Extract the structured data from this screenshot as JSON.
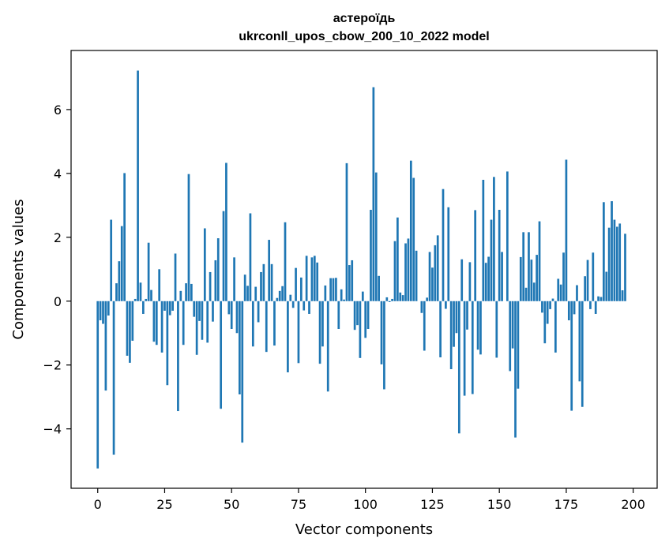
{
  "chart_data": {
    "type": "bar",
    "title": "астероїдь",
    "subtitle": "ukrconll_upos_cbow_200_10_2022 model",
    "xlabel": "Vector components",
    "ylabel": "Components values",
    "xlim": [
      -9.95,
      208.95
    ],
    "ylim": [
      -5.86,
      7.85
    ],
    "xticks": [
      0,
      25,
      50,
      75,
      100,
      125,
      150,
      175,
      200
    ],
    "yticks": [
      -4,
      -2,
      0,
      2,
      4,
      6
    ],
    "ytick_labels": [
      "−4",
      "−2",
      "0",
      "2",
      "4",
      "6"
    ],
    "grid": false,
    "bar_color": "#1f77b4",
    "values": [
      -5.24,
      -0.6,
      -0.71,
      -2.8,
      -0.45,
      2.55,
      -4.81,
      0.56,
      1.25,
      2.35,
      4.01,
      -1.71,
      -1.93,
      -1.24,
      0.07,
      7.22,
      0.58,
      -0.4,
      0.07,
      1.83,
      0.35,
      -1.27,
      -1.37,
      1.0,
      -1.61,
      -0.3,
      -2.63,
      -0.44,
      -0.3,
      1.49,
      -3.44,
      0.32,
      -1.37,
      0.56,
      3.98,
      0.54,
      -0.49,
      -1.68,
      -0.62,
      -1.21,
      2.28,
      -1.3,
      0.91,
      -0.64,
      1.28,
      1.97,
      -3.37,
      2.82,
      4.33,
      -0.41,
      -0.87,
      1.37,
      -1.0,
      -2.92,
      -4.43,
      0.83,
      0.48,
      2.75,
      -1.42,
      0.45,
      -0.66,
      0.91,
      1.16,
      -1.59,
      1.92,
      1.16,
      -1.39,
      0.1,
      0.32,
      0.47,
      2.47,
      -2.23,
      0.2,
      -0.21,
      1.04,
      -1.94,
      0.74,
      -0.29,
      1.42,
      -0.4,
      1.37,
      1.42,
      1.21,
      -1.96,
      -1.42,
      0.49,
      -2.83,
      0.72,
      0.72,
      0.73,
      -0.87,
      0.37,
      0.05,
      4.32,
      1.13,
      1.28,
      -0.9,
      -0.75,
      -1.78,
      0.3,
      -1.15,
      -0.87,
      2.86,
      6.7,
      4.03,
      0.79,
      -1.98,
      -2.76,
      0.12,
      -0.03,
      0.07,
      1.88,
      2.62,
      0.27,
      0.19,
      1.81,
      1.96,
      4.4,
      3.86,
      1.58,
      0.0,
      -0.37,
      -1.55,
      0.11,
      1.54,
      1.05,
      1.75,
      2.06,
      -1.76,
      3.51,
      -0.24,
      2.94,
      -2.13,
      -1.43,
      -1.0,
      -4.14,
      1.31,
      -2.96,
      -0.89,
      1.22,
      -2.91,
      2.85,
      -1.52,
      -1.67,
      3.8,
      1.2,
      1.39,
      2.55,
      3.89,
      -1.77,
      2.86,
      1.54,
      0.0,
      4.06,
      -2.19,
      -1.48,
      -4.27,
      -2.74,
      1.38,
      2.16,
      0.42,
      2.16,
      1.3,
      0.58,
      1.45,
      2.5,
      -0.36,
      -1.32,
      -0.71,
      -0.25,
      0.08,
      -1.61,
      0.7,
      0.52,
      1.52,
      4.43,
      -0.6,
      -3.43,
      -0.41,
      0.5,
      -2.51,
      -3.31,
      0.78,
      1.29,
      -0.25,
      1.52,
      -0.4,
      0.15,
      0.13,
      3.1,
      0.92,
      2.3,
      3.13,
      2.55,
      2.33,
      2.43,
      0.34,
      2.11
    ]
  }
}
